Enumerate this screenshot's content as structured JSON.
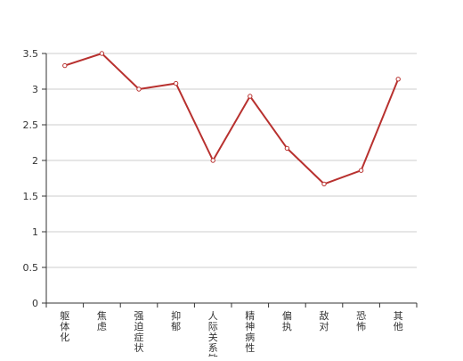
{
  "chart_data": {
    "type": "line",
    "categories": [
      "躯体化",
      "焦虑",
      "强迫症状",
      "抑郁",
      "人际关系敏感",
      "精神病性",
      "偏执",
      "敌对",
      "恐怖",
      "其他"
    ],
    "series": [
      {
        "values": [
          3.33,
          3.5,
          3.0,
          3.08,
          2.0,
          2.9,
          2.17,
          1.67,
          1.86,
          3.14
        ]
      }
    ],
    "yticks": [
      "0",
      "0.5",
      "1",
      "1.5",
      "2",
      "2.5",
      "3",
      "3.5"
    ],
    "ylim": [
      0,
      3.5
    ],
    "grid": true,
    "title": "",
    "xlabel": "",
    "ylabel": "",
    "colors": {
      "line": "#b8312f",
      "grid": "#cccccc",
      "axis": "#333333"
    }
  }
}
